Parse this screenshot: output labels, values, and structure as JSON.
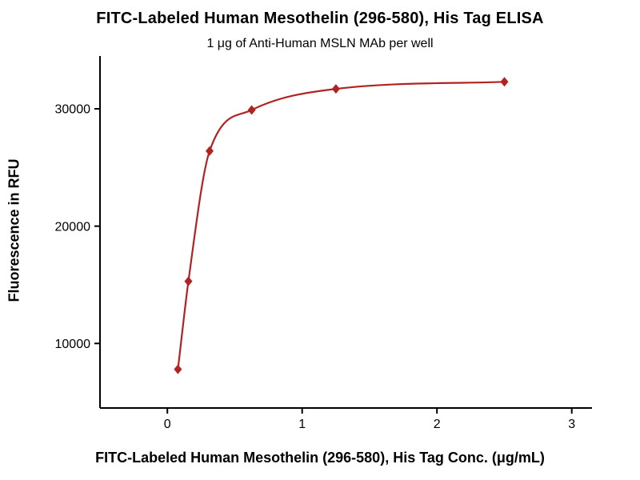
{
  "chart_data": {
    "type": "scatter",
    "title": "FITC-Labeled Human Mesothelin (296-580), His Tag ELISA",
    "subtitle": "1 μg of Anti-Human MSLN MAb per well",
    "xlabel": "FITC-Labeled Human Mesothelin (296-580), His Tag Conc. (μg/mL)",
    "ylabel": "Fluorescence in RFU",
    "x": [
      0.078,
      0.156,
      0.313,
      0.625,
      1.25,
      2.5
    ],
    "y": [
      7800,
      15300,
      26400,
      29900,
      31700,
      32300
    ],
    "marker": "diamond",
    "curve": "smooth-fit-line",
    "series_color": "#b22222",
    "axis_color": "#000000",
    "xlim": [
      -0.5,
      3.15
    ],
    "ylim": [
      4500,
      34500
    ],
    "xticks": [
      0,
      1,
      2,
      3
    ],
    "yticks": [
      10000,
      20000,
      30000
    ],
    "grid": false,
    "legend": null
  }
}
